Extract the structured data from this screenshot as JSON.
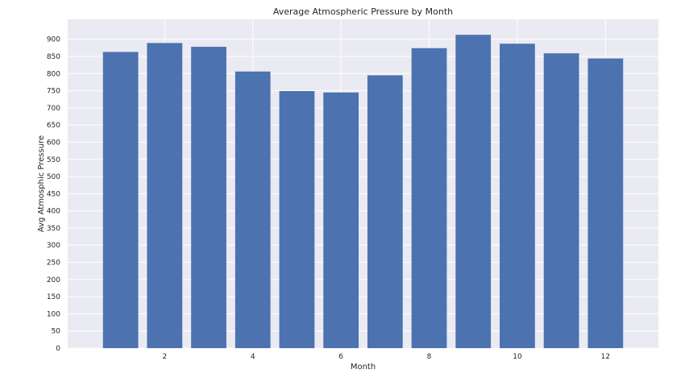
{
  "chart_data": {
    "type": "bar",
    "title": "Average Atmospheric Pressure by Month",
    "xlabel": "Month",
    "ylabel": "Avg Atmosphic Pressure",
    "categories": [
      1,
      2,
      3,
      4,
      5,
      6,
      7,
      8,
      9,
      10,
      11,
      12
    ],
    "values": [
      863,
      889,
      878,
      806,
      749,
      745,
      795,
      874,
      913,
      887,
      859,
      844
    ],
    "xlim": [
      -0.2,
      13.2
    ],
    "ylim": [
      0,
      958
    ],
    "xticks": [
      2,
      4,
      6,
      8,
      10,
      12
    ],
    "yticks": [
      0,
      50,
      100,
      150,
      200,
      250,
      300,
      350,
      400,
      450,
      500,
      550,
      600,
      650,
      700,
      750,
      800,
      850,
      900
    ],
    "grid": true,
    "colors": {
      "bar": "#4c72b0",
      "plot_background": "#eaeaf2",
      "grid": "#ffffff"
    }
  }
}
